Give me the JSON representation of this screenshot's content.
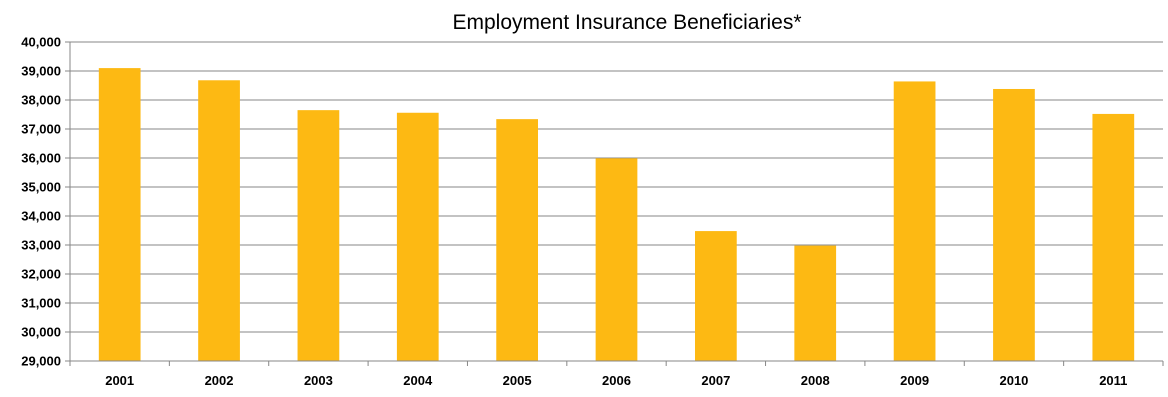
{
  "chart_data": {
    "type": "bar",
    "title": "Employment Insurance Beneficiaries*",
    "xlabel": "",
    "ylabel": "",
    "categories": [
      "2001",
      "2002",
      "2003",
      "2004",
      "2005",
      "2006",
      "2007",
      "2008",
      "2009",
      "2010",
      "2011"
    ],
    "values": [
      39100,
      38680,
      37650,
      37560,
      37340,
      35990,
      33480,
      32980,
      38640,
      38380,
      37520
    ],
    "ylim": [
      29000,
      40000
    ],
    "yticks": [
      29000,
      30000,
      31000,
      32000,
      33000,
      34000,
      35000,
      36000,
      37000,
      38000,
      39000,
      40000
    ],
    "ytick_labels": [
      "29,000",
      "30,000",
      "31,000",
      "32,000",
      "33,000",
      "34,000",
      "35,000",
      "36,000",
      "37,000",
      "38,000",
      "39,000",
      "40,000"
    ],
    "grid": true,
    "legend": "none",
    "bar_color": "#FDB913",
    "grid_color": "#878787",
    "axis_color": "#878787"
  }
}
